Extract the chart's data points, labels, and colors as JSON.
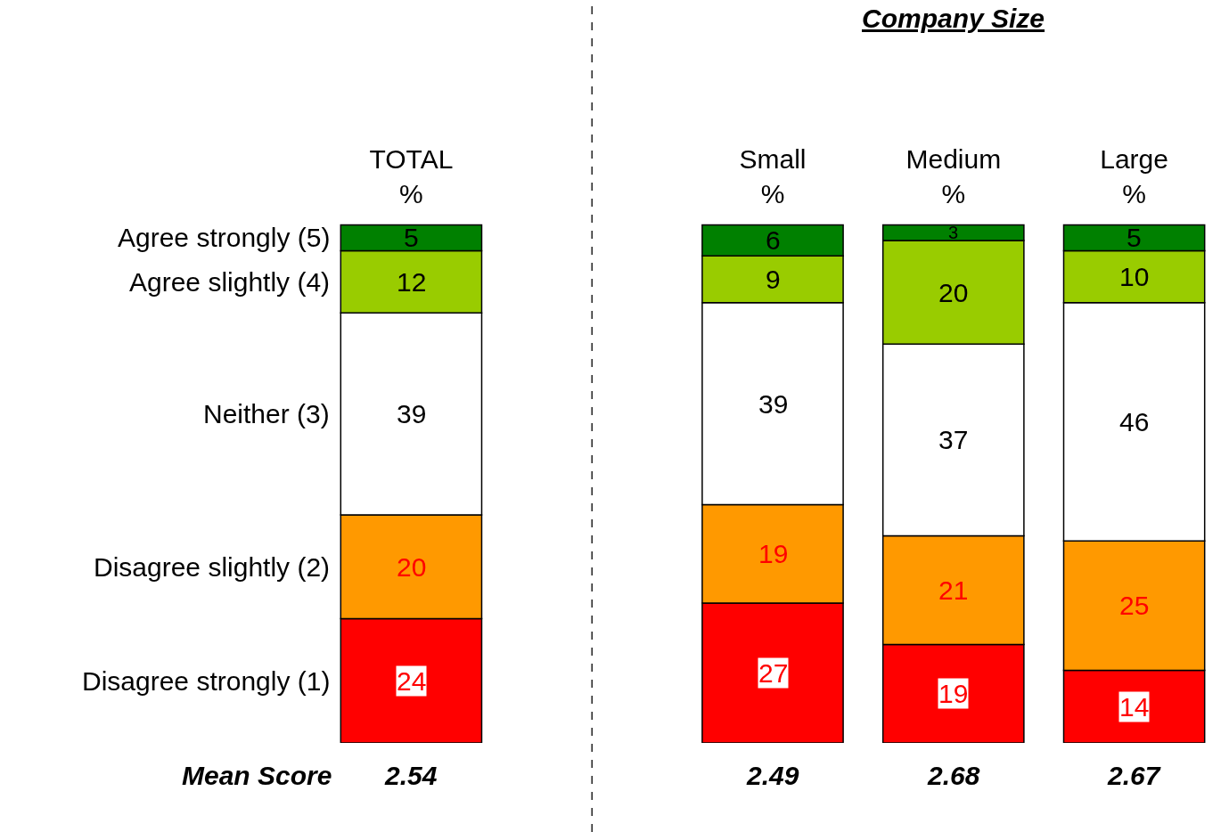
{
  "chart_data": {
    "type": "bar",
    "stacked": true,
    "data_labels": true,
    "legend": false,
    "categories": [
      "TOTAL\n%",
      null,
      "Small\n%",
      "Medium\n%",
      "Large\n%"
    ],
    "series": [
      {
        "name": "Disagree strongly (1)",
        "color": "#ff0000",
        "values": [
          24,
          null,
          27,
          19,
          14
        ]
      },
      {
        "name": "Disagree slightly (2)",
        "color": "#ff9900",
        "values": [
          20,
          null,
          19,
          21,
          25
        ]
      },
      {
        "name": "Neither (3)",
        "color": "#ffffff",
        "values": [
          39,
          null,
          39,
          37,
          46
        ]
      },
      {
        "name": "Agree slightly (4)",
        "color": "#99cc00",
        "values": [
          12,
          null,
          9,
          20,
          10
        ]
      },
      {
        "name": "Agree strongly (5)",
        "color": "#008000",
        "values": [
          5,
          null,
          6,
          3,
          5
        ]
      }
    ],
    "annotations": [
      "Company Size",
      "Mean Score",
      "2.54",
      "2.49",
      "2.68",
      "2.67"
    ]
  }
}
